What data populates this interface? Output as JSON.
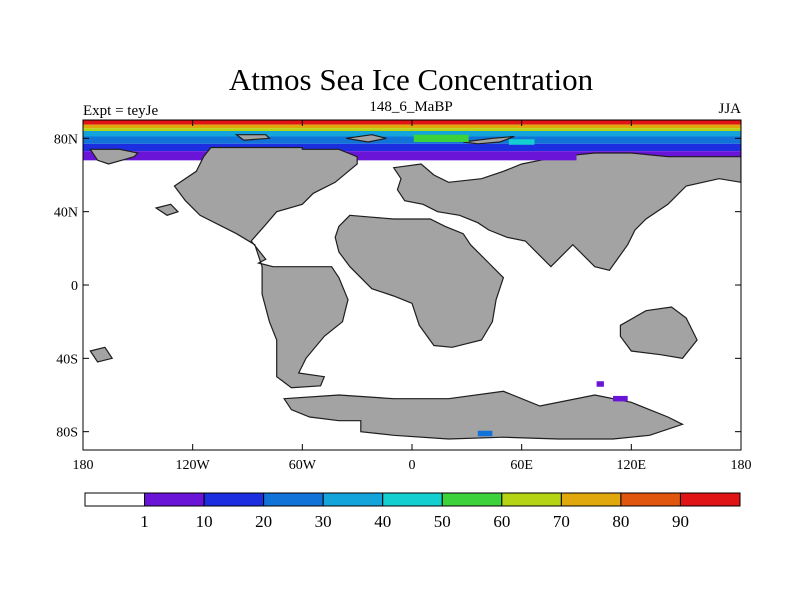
{
  "chart_data": {
    "type": "heatmap",
    "title": "Atmos Sea Ice Concentration",
    "left_label": "Expt = teyJe",
    "center_label": "148_6_MaBP",
    "right_label": "JJA",
    "projection": "cylindrical-equidistant",
    "xlim": [
      -180,
      180
    ],
    "ylim": [
      -90,
      90
    ],
    "x_ticks": [
      {
        "value": -180,
        "label": "180"
      },
      {
        "value": -120,
        "label": "120W"
      },
      {
        "value": -60,
        "label": "60W"
      },
      {
        "value": 0,
        "label": "0"
      },
      {
        "value": 60,
        "label": "60E"
      },
      {
        "value": 120,
        "label": "120E"
      },
      {
        "value": 180,
        "label": "180"
      }
    ],
    "y_ticks": [
      {
        "value": 80,
        "label": "80N"
      },
      {
        "value": 40,
        "label": "40N"
      },
      {
        "value": 0,
        "label": "0"
      },
      {
        "value": -40,
        "label": "40S"
      },
      {
        "value": -80,
        "label": "80S"
      }
    ],
    "colorbar": {
      "levels": [
        "1",
        "10",
        "20",
        "30",
        "40",
        "50",
        "60",
        "70",
        "80",
        "90"
      ],
      "colors": [
        "#ffffff",
        "#6a14d8",
        "#1c2ee0",
        "#1173d8",
        "#14a4dc",
        "#14cfcf",
        "#3cd23c",
        "#b4d414",
        "#e0a80c",
        "#e0560c",
        "#e01414"
      ]
    },
    "colors": {
      "land": "#a3a3a3",
      "land_edge": "#1e1e1e",
      "ocean": "#ffffff"
    },
    "land_polygons": [
      [
        [
          -110,
          75
        ],
        [
          -60,
          75
        ],
        [
          -60,
          74
        ],
        [
          -40,
          74
        ],
        [
          -30,
          70
        ],
        [
          -30,
          66
        ],
        [
          -42,
          56
        ],
        [
          -54,
          50
        ],
        [
          -60,
          44
        ],
        [
          -74,
          40
        ],
        [
          -80,
          33
        ],
        [
          -88,
          24
        ],
        [
          -80,
          14
        ],
        [
          -84,
          12
        ],
        [
          -76,
          10
        ],
        [
          -50,
          10
        ],
        [
          -44,
          10
        ],
        [
          -40,
          4
        ],
        [
          -35,
          -8
        ],
        [
          -38,
          -20
        ],
        [
          -48,
          -28
        ],
        [
          -58,
          -40
        ],
        [
          -62,
          -48
        ],
        [
          -48,
          -50
        ],
        [
          -50,
          -55
        ],
        [
          -66,
          -56
        ],
        [
          -74,
          -50
        ],
        [
          -74,
          -30
        ],
        [
          -78,
          -20
        ],
        [
          -82,
          -5
        ],
        [
          -82,
          10
        ],
        [
          -86,
          22
        ],
        [
          -96,
          28
        ],
        [
          -116,
          38
        ],
        [
          -124,
          46
        ],
        [
          -130,
          54
        ],
        [
          -118,
          62
        ],
        [
          -114,
          70
        ]
      ],
      [
        [
          -34,
          38
        ],
        [
          -22,
          37
        ],
        [
          -10,
          36
        ],
        [
          10,
          36
        ],
        [
          18,
          32
        ],
        [
          28,
          28
        ],
        [
          32,
          22
        ],
        [
          42,
          12
        ],
        [
          50,
          4
        ],
        [
          46,
          -8
        ],
        [
          44,
          -20
        ],
        [
          38,
          -30
        ],
        [
          22,
          -34
        ],
        [
          12,
          -33
        ],
        [
          4,
          -22
        ],
        [
          0,
          -10
        ],
        [
          -10,
          -6
        ],
        [
          -22,
          -2
        ],
        [
          -34,
          10
        ],
        [
          -40,
          18
        ],
        [
          -42,
          26
        ],
        [
          -40,
          32
        ]
      ],
      [
        [
          -10,
          64
        ],
        [
          5,
          66
        ],
        [
          12,
          60
        ],
        [
          20,
          56
        ],
        [
          38,
          58
        ],
        [
          50,
          62
        ],
        [
          60,
          66
        ],
        [
          70,
          68
        ],
        [
          80,
          70
        ],
        [
          100,
          72
        ],
        [
          120,
          72
        ],
        [
          140,
          70
        ],
        [
          160,
          70
        ],
        [
          180,
          70
        ],
        [
          180,
          56
        ],
        [
          168,
          58
        ],
        [
          150,
          54
        ],
        [
          140,
          44
        ],
        [
          128,
          36
        ],
        [
          122,
          30
        ],
        [
          118,
          22
        ],
        [
          108,
          8
        ],
        [
          100,
          10
        ],
        [
          88,
          22
        ],
        [
          76,
          10
        ],
        [
          62,
          24
        ],
        [
          52,
          26
        ],
        [
          42,
          30
        ],
        [
          36,
          34
        ],
        [
          26,
          38
        ],
        [
          14,
          40
        ],
        [
          6,
          44
        ],
        [
          -4,
          46
        ],
        [
          -8,
          52
        ],
        [
          -6,
          58
        ]
      ],
      [
        [
          -70,
          -62
        ],
        [
          -40,
          -60
        ],
        [
          -10,
          -62
        ],
        [
          20,
          -62
        ],
        [
          50,
          -58
        ],
        [
          70,
          -66
        ],
        [
          100,
          -60
        ],
        [
          120,
          -64
        ],
        [
          130,
          -68
        ],
        [
          140,
          -72
        ],
        [
          148,
          -76
        ],
        [
          130,
          -82
        ],
        [
          110,
          -84
        ],
        [
          80,
          -84
        ],
        [
          50,
          -83
        ],
        [
          20,
          -84
        ],
        [
          -10,
          -82
        ],
        [
          -28,
          -80
        ],
        [
          -28,
          -74
        ],
        [
          -40,
          -74
        ],
        [
          -56,
          -72
        ],
        [
          -66,
          -68
        ]
      ],
      [
        [
          114,
          -22
        ],
        [
          128,
          -14
        ],
        [
          142,
          -12
        ],
        [
          150,
          -18
        ],
        [
          156,
          -30
        ],
        [
          148,
          -40
        ],
        [
          136,
          -38
        ],
        [
          120,
          -36
        ],
        [
          114,
          -28
        ]
      ],
      [
        [
          -176,
          74
        ],
        [
          -160,
          74
        ],
        [
          -150,
          72
        ],
        [
          -152,
          70
        ],
        [
          -166,
          66
        ],
        [
          -172,
          68
        ]
      ],
      [
        [
          28,
          78
        ],
        [
          44,
          80
        ],
        [
          56,
          81
        ],
        [
          48,
          78
        ],
        [
          36,
          77
        ]
      ],
      [
        [
          -36,
          80
        ],
        [
          -22,
          82
        ],
        [
          -14,
          80
        ],
        [
          -24,
          78
        ]
      ],
      [
        [
          -96,
          82
        ],
        [
          -80,
          82
        ],
        [
          -78,
          80
        ],
        [
          -92,
          79
        ]
      ],
      [
        [
          -140,
          42
        ],
        [
          -132,
          44
        ],
        [
          -128,
          40
        ],
        [
          -134,
          38
        ]
      ],
      [
        [
          -176,
          -36
        ],
        [
          -168,
          -34
        ],
        [
          -164,
          -40
        ],
        [
          -172,
          -42
        ]
      ]
    ],
    "ice_bands": [
      {
        "lat_max": 90,
        "lat_min": 87.5,
        "color": "#e01414"
      },
      {
        "lat_max": 87.5,
        "lat_min": 85.5,
        "color": "#e0a80c"
      },
      {
        "lat_max": 85.5,
        "lat_min": 84,
        "color": "#b4d414"
      },
      {
        "lat_max": 84,
        "lat_min": 81,
        "color": "#14a4dc"
      },
      {
        "lat_max": 81,
        "lat_min": 77,
        "color": "#1173d8"
      },
      {
        "lat_max": 77,
        "lat_min": 73,
        "color": "#1c2ee0"
      },
      {
        "lat_max": 73,
        "lat_min": 68,
        "color": "#6a14d8"
      }
    ],
    "ice_patches": [
      {
        "lon": 16,
        "lat": 80,
        "width": 30,
        "height": 4,
        "color": "#3cd23c"
      },
      {
        "lon": 60,
        "lat": 78,
        "width": 14,
        "height": 3,
        "color": "#14cfcf"
      },
      {
        "lon": 80,
        "lat": 70,
        "width": 20,
        "height": 4,
        "color": "#6a14d8"
      },
      {
        "lon": 103,
        "lat": -54,
        "width": 4,
        "height": 3,
        "color": "#6a14d8"
      },
      {
        "lon": 114,
        "lat": -62,
        "width": 8,
        "height": 3,
        "color": "#6a14d8"
      },
      {
        "lon": 40,
        "lat": -81,
        "width": 8,
        "height": 3,
        "color": "#1173d8"
      }
    ]
  }
}
